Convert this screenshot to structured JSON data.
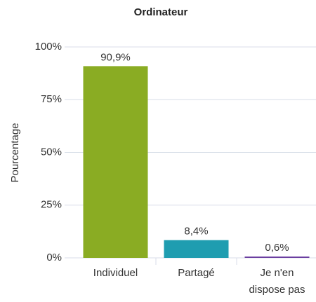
{
  "chart_data": {
    "type": "bar",
    "title": "Ordinateur",
    "y_label": "Pourcentage",
    "categories": [
      "Individuel",
      "Partagé",
      "Je n'en dispose pas"
    ],
    "values": [
      90.9,
      8.4,
      0.6
    ],
    "value_labels": [
      "90,9%",
      "8,4%",
      "0,6%"
    ],
    "colors": [
      "#8aac23",
      "#1f9db0",
      "#6b3fa0"
    ],
    "ylim": [
      0,
      100
    ],
    "yticks": [
      {
        "value": 0,
        "label": "0%"
      },
      {
        "value": 25,
        "label": "25%"
      },
      {
        "value": 50,
        "label": "50%"
      },
      {
        "value": 75,
        "label": "75%"
      },
      {
        "value": 100,
        "label": "100%"
      }
    ],
    "grid": true
  }
}
